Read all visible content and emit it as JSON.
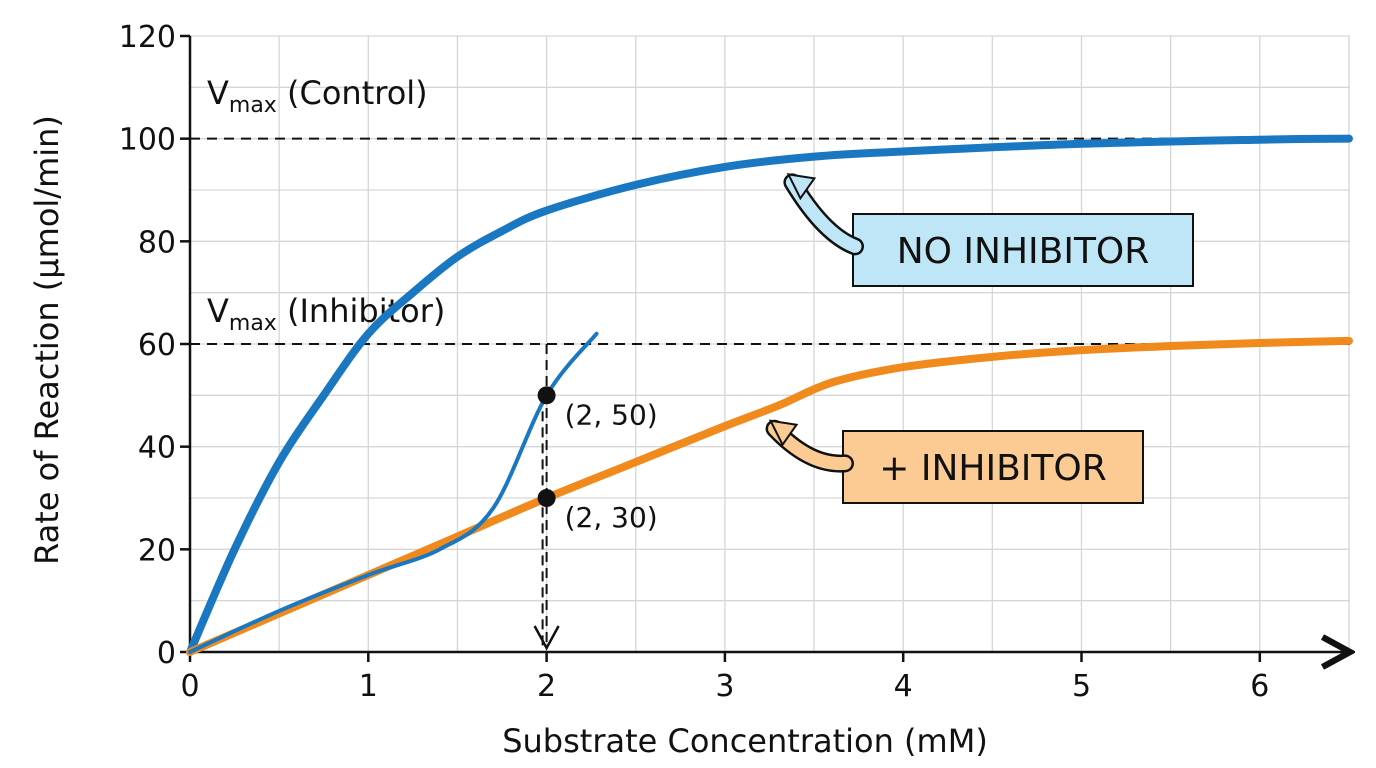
{
  "chart_data": {
    "type": "line",
    "xlabel": "Substrate Concentration (mM)",
    "ylabel": "Rate of Reaction (μmol/min)",
    "xlim": [
      0,
      6.5
    ],
    "ylim": [
      0,
      120
    ],
    "x_ticks": [
      "0",
      "1",
      "2",
      "3",
      "4",
      "5",
      "6"
    ],
    "y_ticks": [
      "0",
      "20",
      "40",
      "60",
      "80",
      "100",
      "120"
    ],
    "grid": true,
    "series": [
      {
        "name": "NO INHIBITOR",
        "color": "#1a78c2",
        "x": [
          0,
          0.25,
          0.5,
          0.75,
          1.0,
          1.25,
          1.5,
          1.75,
          2.0,
          2.5,
          3.0,
          3.5,
          4.0,
          5.0,
          6.0,
          6.5
        ],
        "y": [
          0,
          20,
          37,
          50,
          62,
          70,
          77,
          82,
          86,
          91,
          94.5,
          96.5,
          97.5,
          99,
          99.8,
          100
        ]
      },
      {
        "name": "+ INHIBITOR",
        "color": "#f18a1c",
        "x": [
          0,
          0.5,
          1.0,
          1.5,
          2.0,
          2.5,
          3.0,
          3.3,
          3.6,
          4.0,
          4.5,
          5.0,
          5.5,
          6.0,
          6.5
        ],
        "y": [
          0,
          7.5,
          15,
          22.5,
          30,
          37,
          44,
          48,
          52.5,
          55.5,
          57.5,
          58.8,
          59.6,
          60.2,
          60.6
        ]
      },
      {
        "color": "#1a78c2",
        "x": [
          0,
          0.5,
          1.0,
          1.4,
          1.7,
          2.0,
          2.28
        ],
        "y": [
          0,
          8,
          15,
          20,
          28,
          50,
          62
        ]
      }
    ],
    "reference_lines": [
      {
        "label_main": "V",
        "label_sub": "max",
        "label_rest": " (Control)",
        "y": 100
      },
      {
        "label_main": "V",
        "label_sub": "max",
        "label_rest": " (Inhibitor)",
        "y": 60
      }
    ],
    "marked_points": [
      {
        "x": 2,
        "y": 50,
        "label": "(2, 50)"
      },
      {
        "x": 2,
        "y": 30,
        "label": "(2, 30)"
      }
    ],
    "callouts": [
      {
        "text": "NO INHIBITOR",
        "fill": "#bfe6f7",
        "arrow_color": "#1a78c2",
        "target_x": 3.3,
        "target_y": 95
      },
      {
        "text": "+ INHIBITOR",
        "fill": "#fbcb93",
        "arrow_color": "#f18a1c",
        "target_x": 3.2,
        "target_y": 47
      }
    ]
  }
}
